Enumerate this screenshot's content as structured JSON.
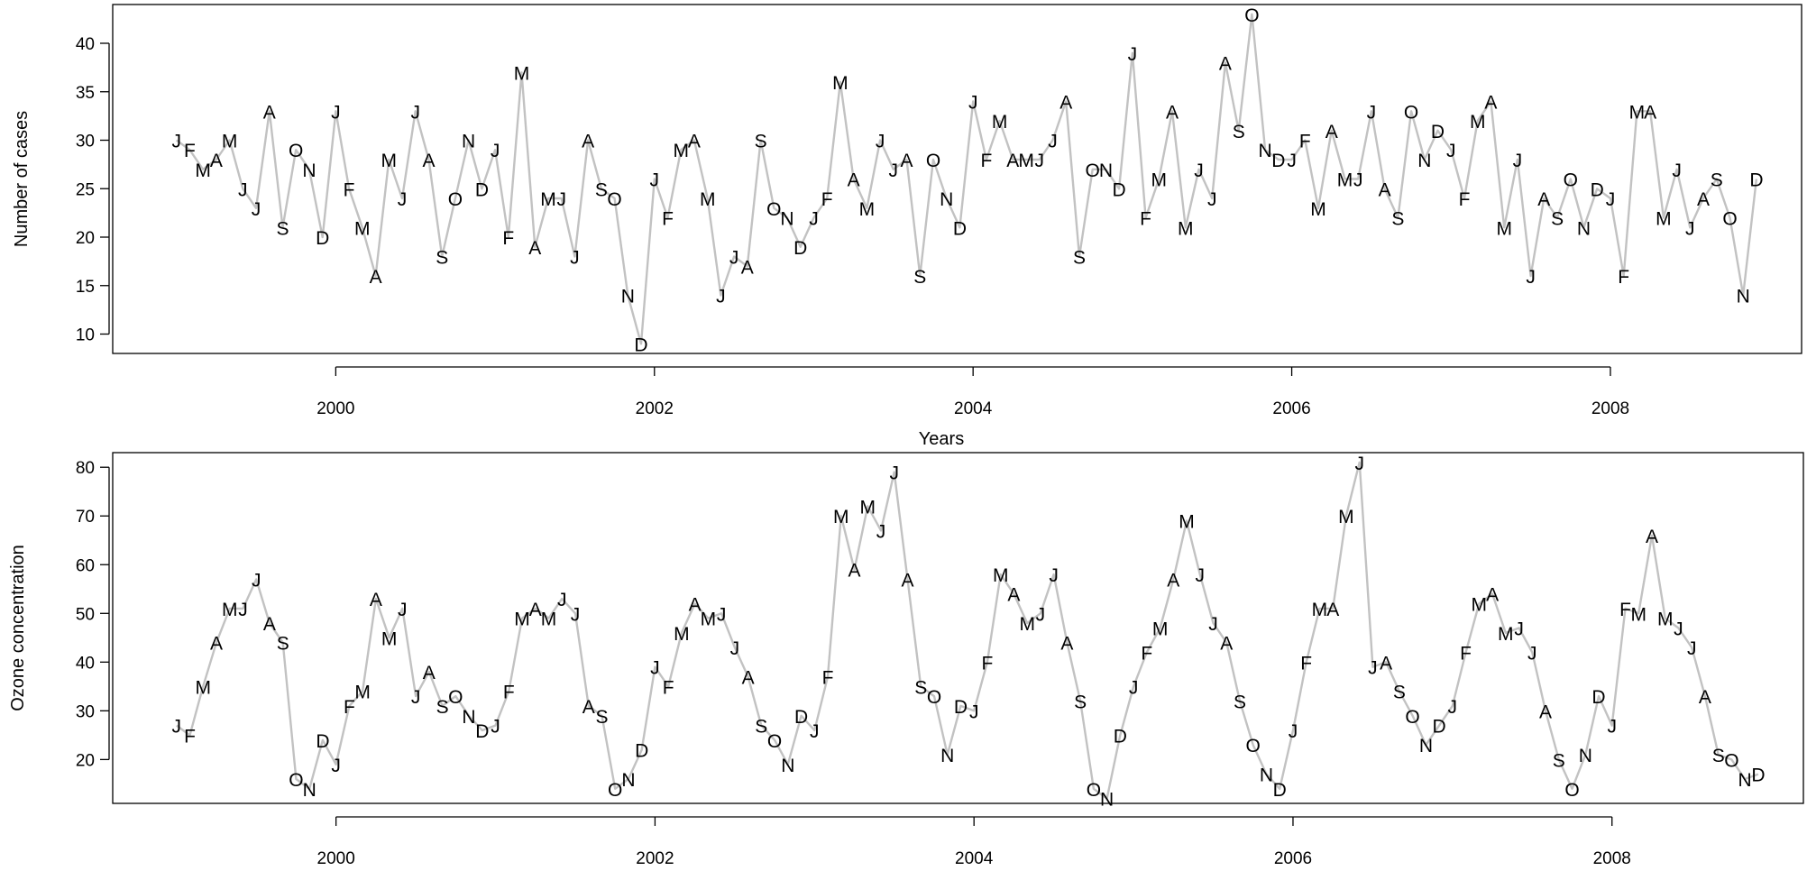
{
  "chart_data": [
    {
      "type": "line",
      "title": "",
      "xlabel": "Years",
      "ylabel": "Number of cases",
      "xlim": [
        1998.6,
        2009.2
      ],
      "ylim": [
        8,
        44
      ],
      "x_ticks": [
        2000,
        2002,
        2004,
        2006,
        2008
      ],
      "x_tick_labels": [
        "2000",
        "2002",
        "2004",
        "2006",
        "2008"
      ],
      "y_ticks": [
        10,
        15,
        20,
        25,
        30,
        35,
        40
      ],
      "y_tick_labels": [
        "10",
        "15",
        "20",
        "25",
        "30",
        "35",
        "40"
      ],
      "start_year": 1999,
      "point_labels": [
        "J",
        "F",
        "M",
        "A",
        "M",
        "J",
        "J",
        "A",
        "S",
        "O",
        "N",
        "D"
      ],
      "series": [
        {
          "values": [
            30,
            29,
            27,
            28,
            30,
            25,
            23,
            33,
            21,
            29,
            27,
            20,
            33,
            25,
            21,
            16,
            28,
            24,
            33,
            28,
            18,
            24,
            30,
            25,
            29,
            20,
            37,
            19,
            24,
            24,
            18,
            30,
            25,
            24,
            14,
            9,
            26,
            22,
            29,
            30,
            24,
            14,
            18,
            17,
            30,
            23,
            22,
            19,
            22,
            24,
            36,
            26,
            23,
            30,
            27,
            28,
            16,
            28,
            24,
            21,
            34,
            28,
            32,
            28,
            28,
            28,
            30,
            34,
            18,
            27,
            27,
            25,
            39,
            22,
            26,
            33,
            21,
            27,
            24,
            38,
            31,
            43,
            29,
            28,
            28,
            30,
            23,
            31,
            26,
            26,
            33,
            25,
            22,
            33,
            28,
            31,
            29,
            24,
            32,
            34,
            21,
            28,
            16,
            24,
            22,
            26,
            21,
            25,
            24,
            16,
            33,
            33,
            22,
            27,
            21,
            24,
            26,
            22,
            14,
            26
          ]
        }
      ]
    },
    {
      "type": "line",
      "title": "",
      "xlabel": "",
      "ylabel": "Ozone concentration",
      "xlim": [
        1998.6,
        2009.2
      ],
      "ylim": [
        11,
        83
      ],
      "x_ticks": [
        2000,
        2002,
        2004,
        2006,
        2008
      ],
      "x_tick_labels": [
        "2000",
        "2002",
        "2004",
        "2006",
        "2008"
      ],
      "y_ticks": [
        20,
        30,
        40,
        50,
        60,
        70,
        80
      ],
      "y_tick_labels": [
        "20",
        "30",
        "40",
        "50",
        "60",
        "70",
        "80"
      ],
      "start_year": 1999,
      "point_labels": [
        "J",
        "F",
        "M",
        "A",
        "M",
        "J",
        "J",
        "A",
        "S",
        "O",
        "N",
        "D"
      ],
      "series": [
        {
          "values": [
            27,
            25,
            35,
            44,
            51,
            51,
            57,
            48,
            44,
            16,
            14,
            24,
            19,
            31,
            34,
            53,
            45,
            51,
            33,
            38,
            31,
            33,
            29,
            26,
            27,
            34,
            49,
            51,
            49,
            53,
            50,
            31,
            29,
            14,
            16,
            22,
            39,
            35,
            46,
            52,
            49,
            50,
            43,
            37,
            27,
            24,
            19,
            29,
            26,
            37,
            70,
            59,
            72,
            67,
            79,
            57,
            35,
            33,
            21,
            31,
            30,
            40,
            58,
            54,
            48,
            50,
            58,
            44,
            32,
            14,
            12,
            25,
            35,
            42,
            47,
            57,
            69,
            58,
            48,
            44,
            32,
            23,
            17,
            14,
            26,
            40,
            51,
            51,
            70,
            81,
            39,
            40,
            34,
            29,
            23,
            27,
            31,
            42,
            52,
            54,
            46,
            47,
            42,
            30,
            20,
            14,
            21,
            33,
            27,
            51,
            50,
            66,
            49,
            47,
            43,
            33,
            21,
            20,
            16,
            17
          ]
        }
      ]
    }
  ]
}
